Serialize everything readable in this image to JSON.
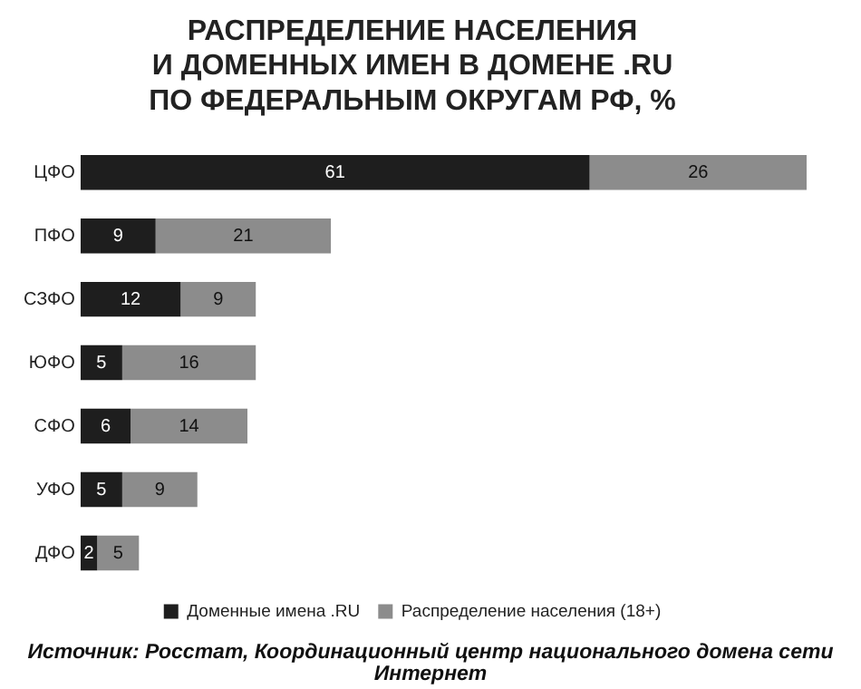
{
  "chart_data": {
    "type": "bar",
    "orientation": "horizontal",
    "stacked": true,
    "title": "РАСПРЕДЕЛЕНИЕ НАСЕЛЕНИЯ\nИ ДОМЕННЫХ ИМЕН В ДОМЕНЕ .RU\nПО ФЕДЕРАЛЬНЫМ ОКРУГАМ РФ, %",
    "categories": [
      "ЦФО",
      "ПФО",
      "СЗФО",
      "ЮФО",
      "СФО",
      "УФО",
      "ДФО"
    ],
    "series": [
      {
        "name": "Доменные имена .RU",
        "color": "#1e1e1e",
        "values": [
          61,
          9,
          12,
          5,
          6,
          5,
          2
        ]
      },
      {
        "name": "Распределение населения (18+)",
        "color": "#8c8c8c",
        "values": [
          26,
          21,
          9,
          16,
          14,
          9,
          5
        ]
      }
    ],
    "data_labels": true,
    "legend": "bottom",
    "grid": false,
    "annotations": [
      "Источник: Росстат, Координационный центр национального домена сети Интернет"
    ]
  }
}
